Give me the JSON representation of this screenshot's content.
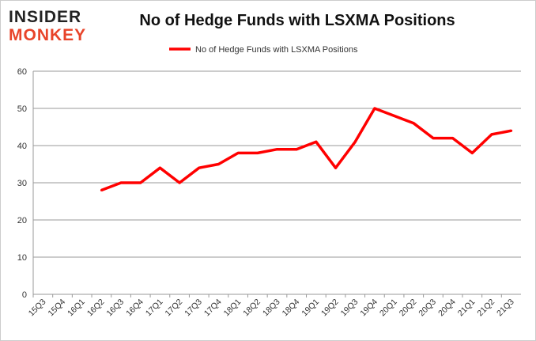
{
  "logo": {
    "line1": "INSIDER",
    "line2": "MONKEY"
  },
  "chart_data": {
    "type": "line",
    "title": "No of Hedge Funds with LSXMA Positions",
    "xlabel": "",
    "ylabel": "",
    "categories": [
      "15Q3",
      "15Q4",
      "16Q1",
      "16Q2",
      "16Q3",
      "16Q4",
      "17Q1",
      "17Q2",
      "17Q3",
      "17Q4",
      "18Q1",
      "18Q2",
      "18Q3",
      "18Q4",
      "19Q1",
      "19Q2",
      "19Q3",
      "19Q4",
      "20Q1",
      "20Q2",
      "20Q3",
      "20Q4",
      "21Q1",
      "21Q2",
      "21Q3"
    ],
    "series": [
      {
        "name": "No of Hedge Funds with LSXMA Positions",
        "color": "#ff0000",
        "values": [
          null,
          null,
          null,
          28,
          30,
          30,
          34,
          30,
          34,
          35,
          38,
          38,
          39,
          39,
          41,
          34,
          41,
          50,
          48,
          46,
          42,
          42,
          38,
          43,
          44
        ]
      }
    ],
    "ylim": [
      0,
      60
    ],
    "yticks": [
      0,
      10,
      20,
      30,
      40,
      50,
      60
    ],
    "grid": true,
    "legend": "top"
  }
}
